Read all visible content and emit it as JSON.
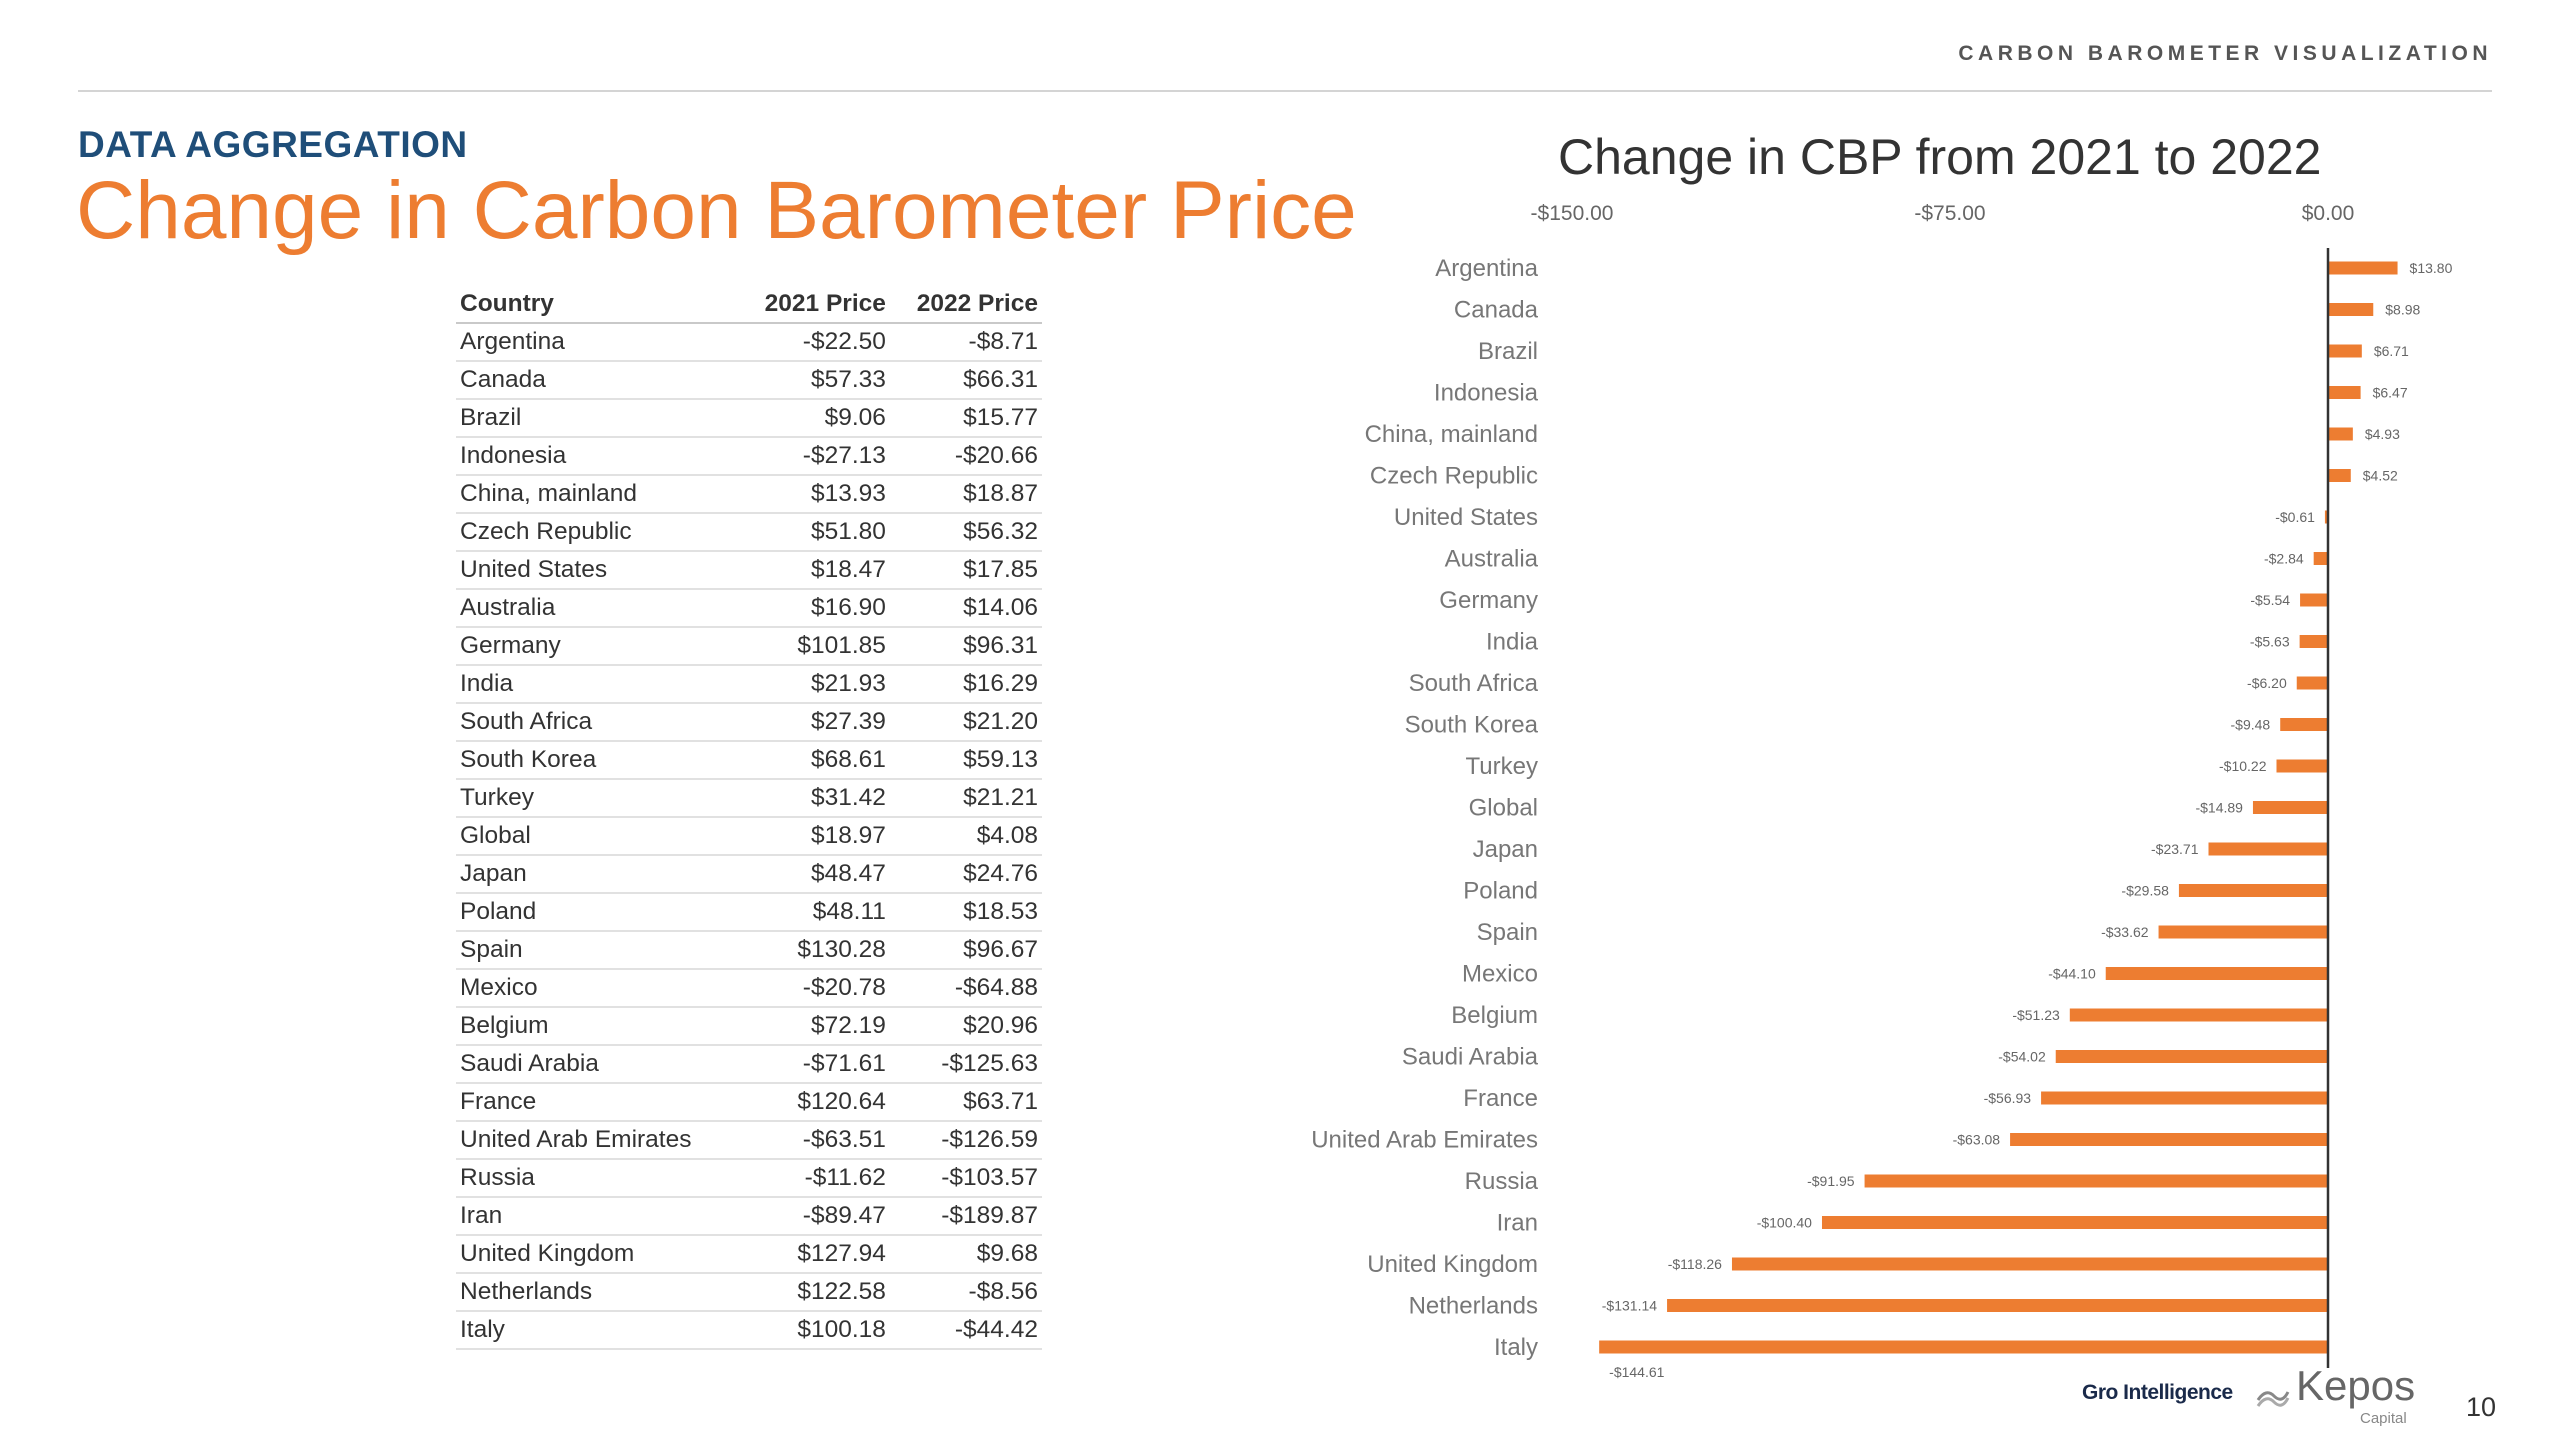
{
  "header": {
    "top_label": "CARBON BAROMETER VISUALIZATION",
    "section_label": "DATA AGGREGATION",
    "title": "Change in Carbon Barometer Price"
  },
  "table": {
    "columns": [
      "Country",
      "2021 Price",
      "2022 Price"
    ],
    "rows": [
      [
        "Argentina",
        "-$22.50",
        "-$8.71"
      ],
      [
        "Canada",
        "$57.33",
        "$66.31"
      ],
      [
        "Brazil",
        "$9.06",
        "$15.77"
      ],
      [
        "Indonesia",
        "-$27.13",
        "-$20.66"
      ],
      [
        "China, mainland",
        "$13.93",
        "$18.87"
      ],
      [
        "Czech Republic",
        "$51.80",
        "$56.32"
      ],
      [
        "United States",
        "$18.47",
        "$17.85"
      ],
      [
        "Australia",
        "$16.90",
        "$14.06"
      ],
      [
        "Germany",
        "$101.85",
        "$96.31"
      ],
      [
        "India",
        "$21.93",
        "$16.29"
      ],
      [
        "South Africa",
        "$27.39",
        "$21.20"
      ],
      [
        "South Korea",
        "$68.61",
        "$59.13"
      ],
      [
        "Turkey",
        "$31.42",
        "$21.21"
      ],
      [
        "Global",
        "$18.97",
        "$4.08"
      ],
      [
        "Japan",
        "$48.47",
        "$24.76"
      ],
      [
        "Poland",
        "$48.11",
        "$18.53"
      ],
      [
        "Spain",
        "$130.28",
        "$96.67"
      ],
      [
        "Mexico",
        "-$20.78",
        "-$64.88"
      ],
      [
        "Belgium",
        "$72.19",
        "$20.96"
      ],
      [
        "Saudi Arabia",
        "-$71.61",
        "-$125.63"
      ],
      [
        "France",
        "$120.64",
        "$63.71"
      ],
      [
        "United Arab Emirates",
        "-$63.51",
        "-$126.59"
      ],
      [
        "Russia",
        "-$11.62",
        "-$103.57"
      ],
      [
        "Iran",
        "-$89.47",
        "-$189.87"
      ],
      [
        "United Kingdom",
        "$127.94",
        "$9.68"
      ],
      [
        "Netherlands",
        "$122.58",
        "-$8.56"
      ],
      [
        "Italy",
        "$100.18",
        "-$44.42"
      ]
    ]
  },
  "chart_data": {
    "type": "bar",
    "orientation": "horizontal",
    "title": "Change in CBP from 2021 to 2022",
    "xlim": [
      -150,
      0
    ],
    "x_ticks": [
      -150,
      -75,
      0
    ],
    "x_tick_labels": [
      "-$150.00",
      "-$75.00",
      "$0.00"
    ],
    "axis_position": "top",
    "grid": false,
    "bar_color": "#ed7d31",
    "categories": [
      "Argentina",
      "Canada",
      "Brazil",
      "Indonesia",
      "China, mainland",
      "Czech Republic",
      "United States",
      "Australia",
      "Germany",
      "India",
      "South Africa",
      "South Korea",
      "Turkey",
      "Global",
      "Japan",
      "Poland",
      "Spain",
      "Mexico",
      "Belgium",
      "Saudi Arabia",
      "France",
      "United Arab Emirates",
      "Russia",
      "Iran",
      "United Kingdom",
      "Netherlands",
      "Italy"
    ],
    "values": [
      13.8,
      8.98,
      6.71,
      6.47,
      4.93,
      4.52,
      -0.61,
      -2.84,
      -5.54,
      -5.63,
      -6.2,
      -9.48,
      -10.22,
      -14.89,
      -23.71,
      -29.58,
      -33.62,
      -44.1,
      -51.23,
      -54.02,
      -56.93,
      -63.08,
      -91.95,
      -100.4,
      -118.26,
      -131.14,
      -144.61
    ],
    "data_labels": [
      "$13.80",
      "$8.98",
      "$6.71",
      "$6.47",
      "$4.93",
      "$4.52",
      "-$0.61",
      "-$2.84",
      "-$5.54",
      "-$5.63",
      "-$6.20",
      "-$9.48",
      "-$10.22",
      "-$14.89",
      "-$23.71",
      "-$29.58",
      "-$33.62",
      "-$44.10",
      "-$51.23",
      "-$54.02",
      "-$56.93",
      "-$63.08",
      "-$91.95",
      "-$100.40",
      "-$118.26",
      "-$131.14",
      "-$144.61"
    ]
  },
  "footer": {
    "logo_gro": "Gro Intelligence",
    "logo_kepos": "Kepos",
    "logo_kepos_sub": "Capital",
    "page_number": "10"
  }
}
